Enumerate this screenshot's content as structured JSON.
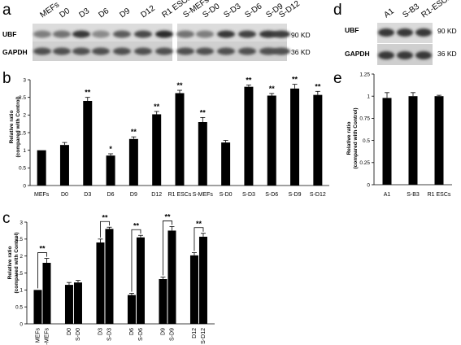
{
  "panels": {
    "a": "a",
    "b": "b",
    "c": "c",
    "d": "d",
    "e": "e"
  },
  "blot_a": {
    "lanes": [
      "MEFs",
      "D0",
      "D3",
      "D6",
      "D9",
      "D12",
      "R1 ESCs",
      "S-MEFs",
      "S-D0",
      "S-D3",
      "S-D6",
      "S-D9",
      "S-D12"
    ],
    "rows": [
      {
        "label": "UBF",
        "size": "90 KD",
        "intensity": [
          0.55,
          0.6,
          0.85,
          0.5,
          0.7,
          0.78,
          0.9,
          0.6,
          0.55,
          0.85,
          0.8,
          0.85,
          0.82
        ]
      },
      {
        "label": "GAPDH",
        "size": "36 KD",
        "intensity": [
          0.75,
          0.75,
          0.75,
          0.75,
          0.75,
          0.75,
          0.75,
          0.75,
          0.75,
          0.75,
          0.75,
          0.75,
          0.75
        ]
      }
    ]
  },
  "blot_d": {
    "lanes": [
      "A1",
      "S-B3",
      "R1-ESCs"
    ],
    "rows": [
      {
        "label": "UBF",
        "size": "90 KD",
        "intensity": [
          0.85,
          0.85,
          0.85
        ]
      },
      {
        "label": "GAPDH",
        "size": "36 KD",
        "intensity": [
          0.85,
          0.85,
          0.85
        ]
      }
    ]
  },
  "chart_data": [
    {
      "panel": "b",
      "type": "bar",
      "ylabel": "Relative ratio\n(compared with Control)",
      "ylim": [
        0,
        3
      ],
      "yticks": [
        "0",
        "0.5",
        "1",
        "1.5",
        "2",
        "2.5",
        "3"
      ],
      "categories": [
        "MEFs",
        "D0",
        "D3",
        "D6",
        "D9",
        "D12",
        "R1 ESCs",
        "S-MEFs",
        "S-D0",
        "S-D3",
        "S-D6",
        "S-D9",
        "S-D12"
      ],
      "values": [
        1.0,
        1.15,
        2.4,
        0.85,
        1.32,
        2.02,
        2.62,
        1.8,
        1.22,
        2.8,
        2.55,
        2.75,
        2.57
      ],
      "errors": [
        0.0,
        0.07,
        0.1,
        0.05,
        0.06,
        0.08,
        0.08,
        0.13,
        0.06,
        0.05,
        0.06,
        0.12,
        0.1
      ],
      "significance": [
        "",
        "",
        "**",
        "*",
        "**",
        "**",
        "**",
        "**",
        "",
        "**",
        "**",
        "**",
        "**"
      ],
      "grid": false
    },
    {
      "panel": "c",
      "type": "bar",
      "ylabel": "Relative ratio\n(compared with Control)",
      "ylim": [
        0,
        3
      ],
      "yticks": [
        "0",
        "0.5",
        "1",
        "1.5",
        "2",
        "2.5",
        "3"
      ],
      "groups": [
        {
          "labels": [
            "MEFs",
            "S-MEFs"
          ],
          "values": [
            1.0,
            1.8
          ],
          "errors": [
            0.0,
            0.13
          ],
          "significance": "**"
        },
        {
          "labels": [
            "D0",
            "S-D0"
          ],
          "values": [
            1.15,
            1.22
          ],
          "errors": [
            0.07,
            0.06
          ],
          "significance": ""
        },
        {
          "labels": [
            "D3",
            "S-D3"
          ],
          "values": [
            2.4,
            2.8
          ],
          "errors": [
            0.1,
            0.05
          ],
          "significance": "**"
        },
        {
          "labels": [
            "D6",
            "S-D6"
          ],
          "values": [
            0.85,
            2.55
          ],
          "errors": [
            0.05,
            0.06
          ],
          "significance": "**"
        },
        {
          "labels": [
            "D9",
            "S-D9"
          ],
          "values": [
            1.32,
            2.75
          ],
          "errors": [
            0.06,
            0.12
          ],
          "significance": "**"
        },
        {
          "labels": [
            "D12",
            "S-D12"
          ],
          "values": [
            2.02,
            2.57
          ],
          "errors": [
            0.08,
            0.1
          ],
          "significance": "**"
        }
      ],
      "grid": false
    },
    {
      "panel": "e",
      "type": "bar",
      "ylabel": "Relative ratio\n(compared with Control)",
      "ylim": [
        0,
        1.2
      ],
      "yticks": [
        "0",
        "0.25",
        "0.5",
        "0.75",
        "1",
        "1.25"
      ],
      "categories": [
        "A1",
        "S-B3",
        "R1 ESCs"
      ],
      "values": [
        0.98,
        1.0,
        1.0
      ],
      "errors": [
        0.06,
        0.04,
        0.01
      ],
      "grid": false
    }
  ]
}
